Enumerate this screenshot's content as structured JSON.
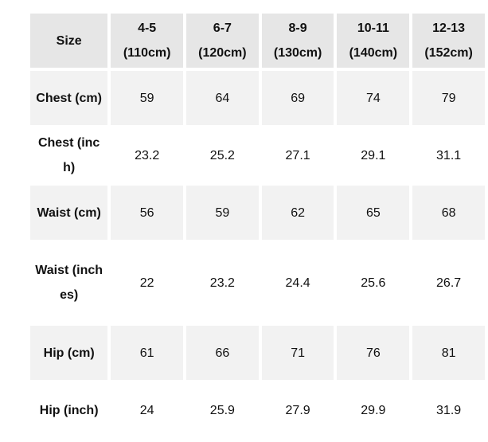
{
  "header": {
    "label": "Size",
    "columns": [
      {
        "size": "4-5",
        "height": "(110cm)"
      },
      {
        "size": "6-7",
        "height": "(120cm)"
      },
      {
        "size": "8-9",
        "height": "(130cm)"
      },
      {
        "size": "10-11",
        "height": "(140cm)"
      },
      {
        "size": "12-13",
        "height": "(152cm)"
      }
    ]
  },
  "rows": [
    {
      "label": "Chest (cm)",
      "values": [
        "59",
        "64",
        "69",
        "74",
        "79"
      ]
    },
    {
      "label": "Chest (inch)",
      "values": [
        "23.2",
        "25.2",
        "27.1",
        "29.1",
        "31.1"
      ]
    },
    {
      "label": "Waist (cm)",
      "values": [
        "56",
        "59",
        "62",
        "65",
        "68"
      ]
    },
    {
      "label": "Waist (inches)",
      "values": [
        "22",
        "23.2",
        "24.4",
        "25.6",
        "26.7"
      ]
    },
    {
      "label": "Hip (cm)",
      "values": [
        "61",
        "66",
        "71",
        "76",
        "81"
      ]
    },
    {
      "label": "Hip (inch)",
      "values": [
        "24",
        "25.9",
        "27.9",
        "29.9",
        "31.9"
      ]
    }
  ]
}
